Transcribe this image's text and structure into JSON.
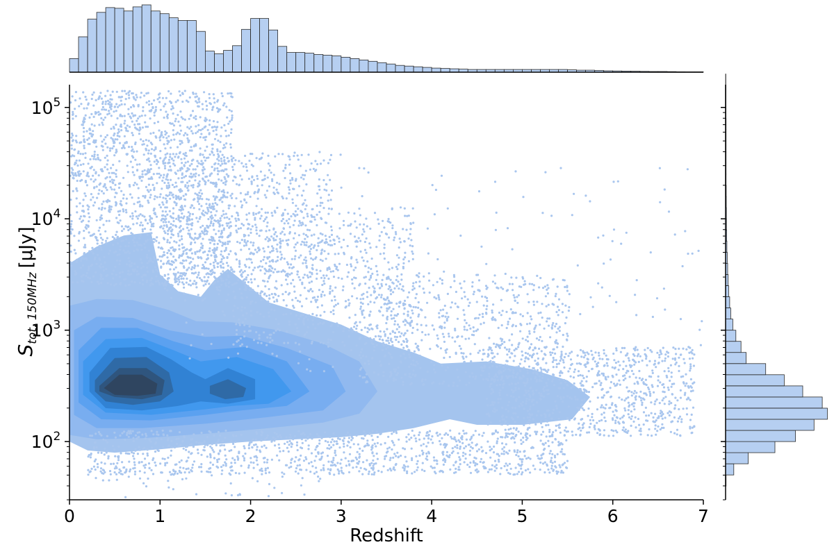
{
  "chart_data": {
    "type": "scatter",
    "xlabel": "Redshift",
    "ylabel": {
      "symbol": "S",
      "subscript": "tot, 150MHz",
      "unit": "[μJy]"
    },
    "xlim": [
      0,
      7
    ],
    "ylim": [
      30,
      160000
    ],
    "yscale": "log",
    "x_ticks": [
      "0",
      "1",
      "2",
      "3",
      "4",
      "5",
      "6",
      "7"
    ],
    "y_ticks": [
      {
        "value": 100,
        "base": "10",
        "exp": "2"
      },
      {
        "value": 1000,
        "base": "10",
        "exp": "3"
      },
      {
        "value": 10000,
        "base": "10",
        "exp": "4"
      },
      {
        "value": 100000,
        "base": "10",
        "exp": "5"
      }
    ],
    "grid": false,
    "colors": {
      "scatter": "#a9c6ee",
      "hist_fill": "#b6cff1",
      "hist_edge": "#2a2a2a",
      "kde_levels": [
        "#a4c4ee",
        "#91b9ef",
        "#78adf0",
        "#5ba1f0",
        "#4198ee",
        "#3182d4",
        "#2f6aa6",
        "#2f557e",
        "#2f4560"
      ]
    },
    "kde_contours": [
      {
        "level": 1,
        "outline": [
          [
            0,
            3.6
          ],
          [
            0.3,
            3.75
          ],
          [
            0.6,
            3.85
          ],
          [
            0.9,
            3.88
          ],
          [
            1.0,
            3.5
          ],
          [
            1.2,
            3.35
          ],
          [
            1.45,
            3.3
          ],
          [
            1.6,
            3.45
          ],
          [
            1.75,
            3.55
          ],
          [
            1.9,
            3.45
          ],
          [
            2.2,
            3.25
          ],
          [
            2.6,
            3.15
          ],
          [
            3.0,
            3.05
          ],
          [
            3.4,
            2.9
          ],
          [
            3.8,
            2.8
          ],
          [
            4.1,
            2.7
          ],
          [
            4.6,
            2.72
          ],
          [
            5.1,
            2.65
          ],
          [
            5.5,
            2.55
          ],
          [
            5.75,
            2.4
          ],
          [
            5.55,
            2.2
          ],
          [
            5.0,
            2.15
          ],
          [
            4.5,
            2.15
          ],
          [
            4.2,
            2.2
          ],
          [
            4.05,
            2.17
          ],
          [
            3.8,
            2.12
          ],
          [
            3.4,
            2.07
          ],
          [
            3.0,
            2.04
          ],
          [
            2.5,
            2.02
          ],
          [
            2.0,
            2.0
          ],
          [
            1.5,
            1.97
          ],
          [
            1.0,
            1.93
          ],
          [
            0.5,
            1.9
          ],
          [
            0.2,
            1.92
          ],
          [
            0,
            2.0
          ]
        ]
      },
      {
        "level": 2,
        "outline": [
          [
            0,
            3.22
          ],
          [
            0.3,
            3.28
          ],
          [
            0.7,
            3.27
          ],
          [
            1.1,
            3.18
          ],
          [
            1.4,
            3.08
          ],
          [
            1.8,
            3.07
          ],
          [
            2.3,
            3.0
          ],
          [
            2.8,
            2.88
          ],
          [
            3.2,
            2.72
          ],
          [
            3.4,
            2.45
          ],
          [
            3.2,
            2.25
          ],
          [
            2.8,
            2.17
          ],
          [
            2.2,
            2.12
          ],
          [
            1.5,
            2.07
          ],
          [
            0.8,
            2.03
          ],
          [
            0.3,
            2.02
          ],
          [
            0,
            2.06
          ]
        ]
      },
      {
        "level": 3,
        "outline": [
          [
            0.05,
            3.0
          ],
          [
            0.3,
            3.12
          ],
          [
            0.7,
            3.11
          ],
          [
            1.1,
            3.0
          ],
          [
            1.5,
            2.94
          ],
          [
            1.9,
            2.95
          ],
          [
            2.4,
            2.84
          ],
          [
            2.9,
            2.68
          ],
          [
            3.05,
            2.45
          ],
          [
            2.8,
            2.28
          ],
          [
            2.2,
            2.22
          ],
          [
            1.5,
            2.16
          ],
          [
            0.8,
            2.12
          ],
          [
            0.3,
            2.12
          ],
          [
            0.05,
            2.24
          ]
        ]
      },
      {
        "level": 4,
        "outline": [
          [
            0.1,
            2.82
          ],
          [
            0.35,
            3.02
          ],
          [
            0.75,
            3.02
          ],
          [
            1.15,
            2.9
          ],
          [
            1.5,
            2.82
          ],
          [
            1.95,
            2.85
          ],
          [
            2.4,
            2.72
          ],
          [
            2.65,
            2.45
          ],
          [
            2.4,
            2.32
          ],
          [
            1.9,
            2.28
          ],
          [
            1.5,
            2.24
          ],
          [
            0.9,
            2.19
          ],
          [
            0.35,
            2.2
          ],
          [
            0.1,
            2.35
          ]
        ]
      },
      {
        "level": 5,
        "outline": [
          [
            0.15,
            2.72
          ],
          [
            0.4,
            2.92
          ],
          [
            0.8,
            2.93
          ],
          [
            1.15,
            2.82
          ],
          [
            1.45,
            2.72
          ],
          [
            1.85,
            2.76
          ],
          [
            2.25,
            2.65
          ],
          [
            2.45,
            2.45
          ],
          [
            2.2,
            2.34
          ],
          [
            1.8,
            2.32
          ],
          [
            1.5,
            2.29
          ],
          [
            0.9,
            2.24
          ],
          [
            0.4,
            2.26
          ],
          [
            0.15,
            2.42
          ]
        ]
      },
      {
        "level": 6,
        "outline": [
          [
            0.22,
            2.62
          ],
          [
            0.45,
            2.84
          ],
          [
            0.85,
            2.85
          ],
          [
            1.12,
            2.74
          ],
          [
            1.35,
            2.62
          ],
          [
            1.5,
            2.56
          ],
          [
            1.75,
            2.66
          ],
          [
            2.05,
            2.56
          ],
          [
            2.05,
            2.38
          ],
          [
            1.75,
            2.34
          ],
          [
            1.45,
            2.36
          ],
          [
            1.2,
            2.32
          ],
          [
            0.8,
            2.28
          ],
          [
            0.4,
            2.3
          ],
          [
            0.22,
            2.45
          ]
        ]
      },
      {
        "level": 7,
        "outline": [
          [
            0.28,
            2.55
          ],
          [
            0.5,
            2.75
          ],
          [
            0.85,
            2.76
          ],
          [
            1.1,
            2.62
          ],
          [
            1.15,
            2.45
          ],
          [
            1.0,
            2.36
          ],
          [
            0.7,
            2.33
          ],
          [
            0.4,
            2.36
          ],
          [
            0.28,
            2.45
          ]
        ]
      },
      {
        "level": 7,
        "outline": [
          [
            1.55,
            2.5
          ],
          [
            1.75,
            2.56
          ],
          [
            1.95,
            2.48
          ],
          [
            1.92,
            2.4
          ],
          [
            1.72,
            2.38
          ],
          [
            1.55,
            2.43
          ]
        ]
      },
      {
        "level": 8,
        "outline": [
          [
            0.33,
            2.5
          ],
          [
            0.55,
            2.66
          ],
          [
            0.85,
            2.66
          ],
          [
            1.05,
            2.55
          ],
          [
            1.02,
            2.42
          ],
          [
            0.8,
            2.38
          ],
          [
            0.5,
            2.4
          ],
          [
            0.33,
            2.45
          ]
        ]
      },
      {
        "level": 9,
        "outline": [
          [
            0.38,
            2.48
          ],
          [
            0.55,
            2.6
          ],
          [
            0.8,
            2.6
          ],
          [
            0.97,
            2.52
          ],
          [
            0.95,
            2.43
          ],
          [
            0.75,
            2.41
          ],
          [
            0.5,
            2.42
          ]
        ]
      }
    ],
    "scatter_regions": [
      {
        "x": [
          0.0,
          1.8
        ],
        "logy": [
          3.4,
          5.15
        ],
        "count": 1700
      },
      {
        "x": [
          1.0,
          2.9
        ],
        "logy": [
          3.25,
          4.6
        ],
        "count": 700
      },
      {
        "x": [
          1.8,
          3.8
        ],
        "logy": [
          2.85,
          4.1
        ],
        "count": 650
      },
      {
        "x": [
          3.2,
          5.5
        ],
        "logy": [
          2.5,
          3.5
        ],
        "count": 650
      },
      {
        "x": [
          4.6,
          6.9
        ],
        "logy": [
          2.05,
          2.85
        ],
        "count": 900
      },
      {
        "x": [
          0.2,
          5.5
        ],
        "logy": [
          1.7,
          2.1
        ],
        "count": 1100
      },
      {
        "x": [
          1.2,
          7.0
        ],
        "logy": [
          2.6,
          4.6
        ],
        "count": 220
      },
      {
        "x": [
          0.2,
          2.8
        ],
        "logy": [
          1.5,
          1.75
        ],
        "count": 50
      }
    ],
    "top_histogram": {
      "bin_width": 0.1,
      "range": [
        0,
        7
      ],
      "heights": [
        0.2,
        0.52,
        0.78,
        0.88,
        0.95,
        0.94,
        0.9,
        0.96,
        0.99,
        0.9,
        0.86,
        0.8,
        0.76,
        0.76,
        0.6,
        0.31,
        0.27,
        0.32,
        0.39,
        0.63,
        0.79,
        0.79,
        0.62,
        0.38,
        0.29,
        0.29,
        0.28,
        0.26,
        0.25,
        0.24,
        0.22,
        0.2,
        0.18,
        0.16,
        0.14,
        0.12,
        0.1,
        0.09,
        0.08,
        0.07,
        0.06,
        0.055,
        0.05,
        0.045,
        0.04,
        0.04,
        0.04,
        0.04,
        0.04,
        0.04,
        0.04,
        0.04,
        0.04,
        0.04,
        0.04,
        0.035,
        0.03,
        0.03,
        0.025,
        0.02,
        0.018,
        0.016,
        0.014,
        0.012,
        0.01,
        0.01,
        0.008,
        0.006,
        0.005,
        0.005
      ]
    },
    "right_histogram": {
      "log_bin_width": 0.1,
      "log_range": [
        1.6,
        5.3
      ],
      "widths": [
        0.005,
        0.08,
        0.22,
        0.48,
        0.68,
        0.86,
        0.99,
        0.94,
        0.75,
        0.57,
        0.39,
        0.2,
        0.15,
        0.1,
        0.07,
        0.05,
        0.04,
        0.03,
        0.025,
        0.02,
        0.016,
        0.013,
        0.011,
        0.009,
        0.008,
        0.007,
        0.006,
        0.005,
        0.005,
        0.005,
        0.005,
        0.005,
        0.005,
        0.004,
        0.004,
        0.004,
        0.003
      ]
    }
  }
}
